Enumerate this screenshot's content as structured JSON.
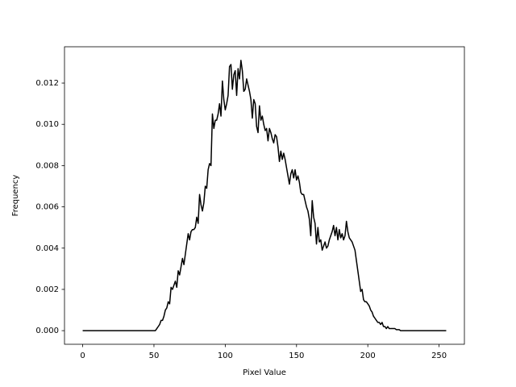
{
  "chart_data": {
    "type": "line",
    "x_label": "Pixel Value",
    "y_label": "Frequency",
    "x": [
      0,
      1,
      2,
      3,
      4,
      5,
      6,
      7,
      8,
      9,
      10,
      11,
      12,
      13,
      14,
      15,
      16,
      17,
      18,
      19,
      20,
      21,
      22,
      23,
      24,
      25,
      26,
      27,
      28,
      29,
      30,
      31,
      32,
      33,
      34,
      35,
      36,
      37,
      38,
      39,
      40,
      41,
      42,
      43,
      44,
      45,
      46,
      47,
      48,
      49,
      50,
      51,
      52,
      53,
      54,
      55,
      56,
      57,
      58,
      59,
      60,
      61,
      62,
      63,
      64,
      65,
      66,
      67,
      68,
      69,
      70,
      71,
      72,
      73,
      74,
      75,
      76,
      77,
      78,
      79,
      80,
      81,
      82,
      83,
      84,
      85,
      86,
      87,
      88,
      89,
      90,
      91,
      92,
      93,
      94,
      95,
      96,
      97,
      98,
      99,
      100,
      101,
      102,
      103,
      104,
      105,
      106,
      107,
      108,
      109,
      110,
      111,
      112,
      113,
      114,
      115,
      116,
      117,
      118,
      119,
      120,
      121,
      122,
      123,
      124,
      125,
      126,
      127,
      128,
      129,
      130,
      131,
      132,
      133,
      134,
      135,
      136,
      137,
      138,
      139,
      140,
      141,
      142,
      143,
      144,
      145,
      146,
      147,
      148,
      149,
      150,
      151,
      152,
      153,
      154,
      155,
      156,
      157,
      158,
      159,
      160,
      161,
      162,
      163,
      164,
      165,
      166,
      167,
      168,
      169,
      170,
      171,
      172,
      173,
      174,
      175,
      176,
      177,
      178,
      179,
      180,
      181,
      182,
      183,
      184,
      185,
      186,
      187,
      188,
      189,
      190,
      191,
      192,
      193,
      194,
      195,
      196,
      197,
      198,
      199,
      200,
      201,
      202,
      203,
      204,
      205,
      206,
      207,
      208,
      209,
      210,
      211,
      212,
      213,
      214,
      215,
      216,
      217,
      218,
      219,
      220,
      221,
      222,
      223,
      224,
      225,
      226,
      227,
      228,
      229,
      230,
      231,
      232,
      233,
      234,
      235,
      236,
      237,
      238,
      239,
      240,
      241,
      242,
      243,
      244,
      245,
      246,
      247,
      248,
      249,
      250,
      251,
      252,
      253,
      254,
      255
    ],
    "values": [
      0,
      0,
      0,
      0,
      0,
      0,
      0,
      0,
      0,
      0,
      0,
      0,
      0,
      0,
      0,
      0,
      0,
      0,
      0,
      0,
      0,
      0,
      0,
      0,
      0,
      0,
      0,
      0,
      0,
      0,
      0,
      0,
      0,
      0,
      0,
      0,
      0,
      0,
      0,
      0,
      0,
      0,
      0,
      0,
      0,
      0,
      0,
      0,
      0,
      0,
      0,
      0,
      0.0001,
      0.0002,
      0.0003,
      0.0005,
      0.0005,
      0.0007,
      0.001,
      0.0011,
      0.0014,
      0.0013,
      0.0021,
      0.002,
      0.0022,
      0.0024,
      0.0021,
      0.0029,
      0.0027,
      0.0031,
      0.0035,
      0.0032,
      0.0037,
      0.0042,
      0.0047,
      0.0044,
      0.0048,
      0.0049,
      0.0049,
      0.005,
      0.0055,
      0.0052,
      0.0066,
      0.0061,
      0.0058,
      0.0062,
      0.007,
      0.0069,
      0.0078,
      0.0081,
      0.008,
      0.0105,
      0.0098,
      0.0102,
      0.0102,
      0.0105,
      0.011,
      0.0104,
      0.0121,
      0.0112,
      0.0107,
      0.011,
      0.0114,
      0.0128,
      0.0129,
      0.0117,
      0.0124,
      0.0126,
      0.0114,
      0.0127,
      0.0122,
      0.0131,
      0.0126,
      0.0116,
      0.0117,
      0.0122,
      0.0119,
      0.0116,
      0.0112,
      0.0103,
      0.0112,
      0.011,
      0.0099,
      0.0096,
      0.0109,
      0.0102,
      0.0104,
      0.01,
      0.0097,
      0.0098,
      0.0092,
      0.0098,
      0.0096,
      0.0093,
      0.0091,
      0.0095,
      0.0094,
      0.0089,
      0.0082,
      0.0087,
      0.0083,
      0.0086,
      0.0083,
      0.0079,
      0.0075,
      0.0071,
      0.0076,
      0.0078,
      0.0074,
      0.0078,
      0.0073,
      0.0075,
      0.0072,
      0.0067,
      0.0066,
      0.0066,
      0.0063,
      0.006,
      0.0058,
      0.0054,
      0.0046,
      0.0063,
      0.0055,
      0.0052,
      0.0042,
      0.005,
      0.0043,
      0.0044,
      0.0039,
      0.0041,
      0.0043,
      0.004,
      0.0041,
      0.0044,
      0.0046,
      0.0048,
      0.0051,
      0.0046,
      0.005,
      0.0044,
      0.0049,
      0.0045,
      0.0047,
      0.0044,
      0.0046,
      0.0053,
      0.0048,
      0.0045,
      0.0044,
      0.0043,
      0.0041,
      0.0039,
      0.0034,
      0.0029,
      0.0024,
      0.0019,
      0.002,
      0.0015,
      0.0014,
      0.0014,
      0.0013,
      0.0012,
      0.001,
      0.0009,
      0.0007,
      0.0006,
      0.0005,
      0.0004,
      0.0004,
      0.0003,
      0.0004,
      0.0002,
      0.0002,
      0.0001,
      0.0002,
      0.0001,
      0.0001,
      0.0001,
      0.0001,
      0.0001,
      5e-05,
      5e-05,
      5e-05,
      0,
      0,
      0,
      0,
      0,
      0,
      0,
      0,
      0,
      0,
      0,
      0,
      0,
      0,
      0,
      0,
      0,
      0,
      0,
      0,
      0,
      0,
      0,
      0,
      0,
      0,
      0,
      0,
      0,
      0,
      0,
      0,
      0
    ],
    "color": "#000000",
    "xlim": [
      -12.75,
      267.75
    ],
    "xticks": [
      0,
      50,
      100,
      150,
      200,
      250
    ],
    "ylim": [
      -0.00066,
      0.01376
    ],
    "yticks": [
      {
        "value": 0,
        "label": "0.000"
      },
      {
        "value": 0.002,
        "label": "0.002"
      },
      {
        "value": 0.004,
        "label": "0.004"
      },
      {
        "value": 0.006,
        "label": "0.006"
      },
      {
        "value": 0.008,
        "label": "0.008"
      },
      {
        "value": 0.01,
        "label": "0.010"
      },
      {
        "value": 0.012,
        "label": "0.012"
      }
    ]
  }
}
